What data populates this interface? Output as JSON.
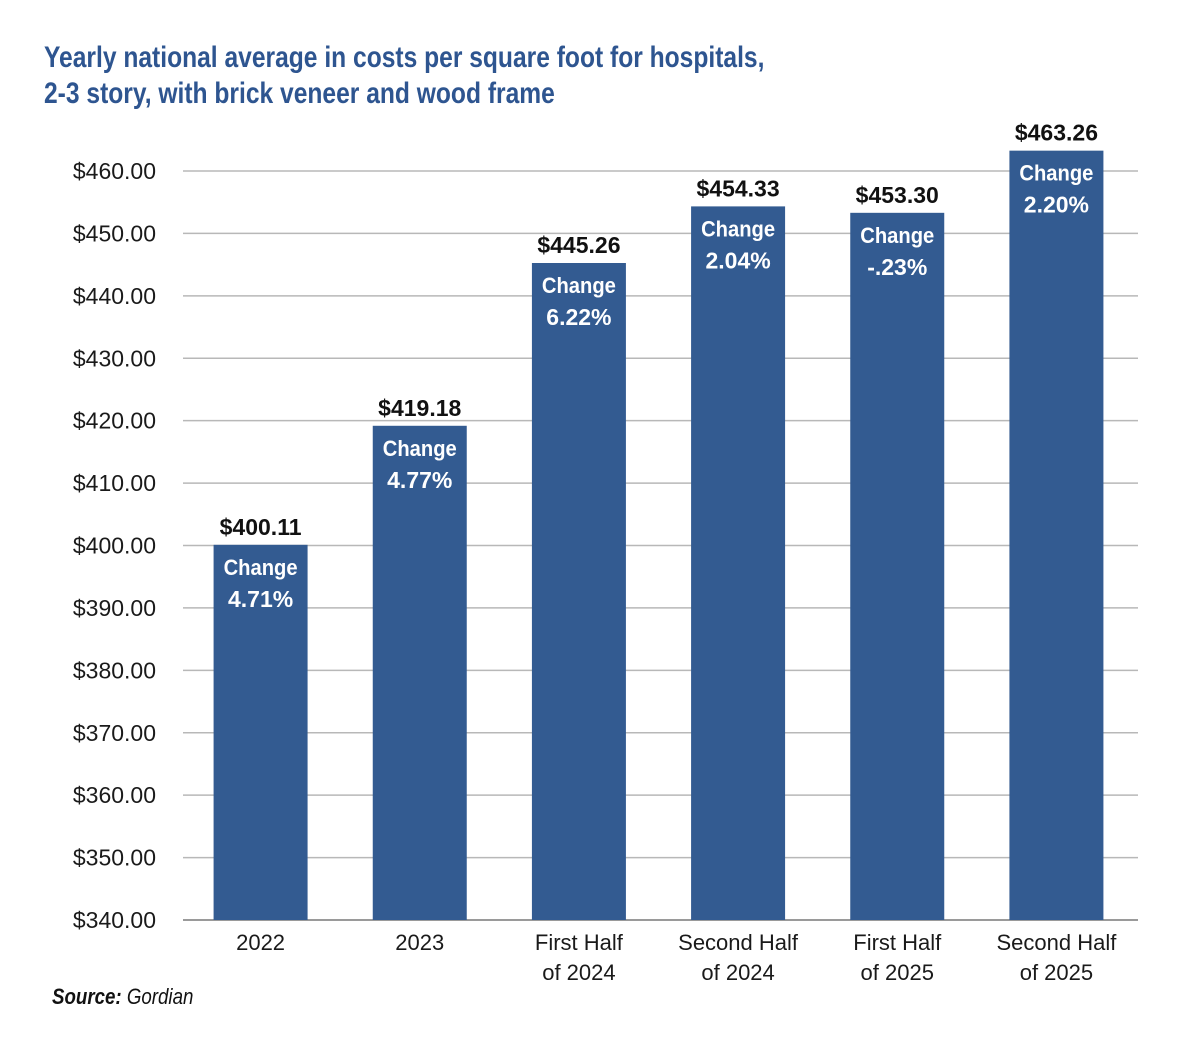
{
  "chart_data": {
    "type": "bar",
    "title": "Yearly national average in costs per square foot for hospitals, 2-3 story, with brick veneer and wood frame",
    "title_lines": [
      "Yearly national average in costs per square foot for hospitals,",
      "2-3 story, with brick veneer and wood frame"
    ],
    "xlabel": "",
    "ylabel": "",
    "ylim": [
      340,
      460
    ],
    "yticks": [
      340,
      350,
      360,
      370,
      380,
      390,
      400,
      410,
      420,
      430,
      440,
      450,
      460
    ],
    "ytick_labels": [
      "$340.00",
      "$350.00",
      "$360.00",
      "$370.00",
      "$380.00",
      "$390.00",
      "$400.00",
      "$410.00",
      "$420.00",
      "$430.00",
      "$440.00",
      "$450.00",
      "$460.00"
    ],
    "grid": true,
    "categories": [
      [
        "2022"
      ],
      [
        "2023"
      ],
      [
        "First Half",
        "of 2024"
      ],
      [
        "Second Half",
        "of 2024"
      ],
      [
        "First Half",
        "of 2025"
      ],
      [
        "Second Half",
        "of 2025"
      ]
    ],
    "values": [
      400.11,
      419.18,
      445.26,
      454.33,
      453.3,
      463.26
    ],
    "value_labels": [
      "$400.11",
      "$419.18",
      "$445.26",
      "$454.33",
      "$453.30",
      "$463.26"
    ],
    "change_label": "Change",
    "changes": [
      "4.71%",
      "4.77%",
      "6.22%",
      "2.04%",
      "-.23%",
      "2.20%"
    ],
    "bar_color": "#335b91",
    "title_color": "#2e5590",
    "source_label": "Source:",
    "source_value": "Gordian"
  }
}
